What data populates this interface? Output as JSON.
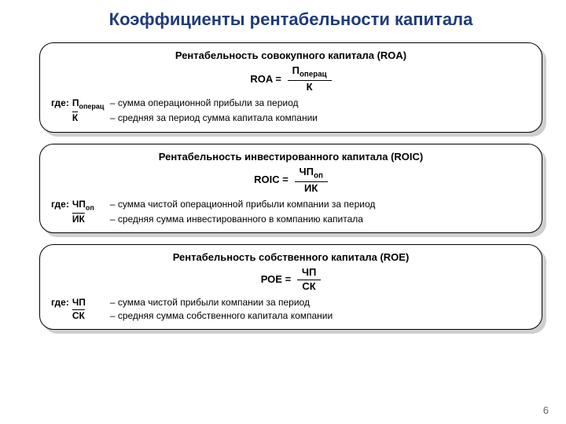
{
  "title": "Коэффициенты рентабельности капитала",
  "page_number": "6",
  "blocks": {
    "roa": {
      "subtitle": "Рентабельность совокупного капитала (ROA)",
      "lhs": "ROA =",
      "num": "Поперац",
      "den": "К",
      "where_label": "где:",
      "r1_sym": "Поперац",
      "r1_txt": "– сумма операционной прибыли за период",
      "r2_sym": "К",
      "r2_txt": "– средняя за период сумма капитала компании"
    },
    "roic": {
      "subtitle": "Рентабельность инвестированного капитала (ROIC)",
      "lhs": "ROIC =",
      "num": "ЧПоп",
      "den": "ИК",
      "where_label": "где:",
      "r1_sym": "ЧПоп",
      "r1_txt": "– сумма чистой операционной прибыли компании за период",
      "r2_sym": "ИК",
      "r2_txt": "– средняя сумма инвестированного в компанию капитала"
    },
    "roe": {
      "subtitle": "Рентабельность собственного капитала (ROE)",
      "lhs": "РОЕ =",
      "num": "ЧП",
      "den": "СК",
      "where_label": "где:",
      "r1_sym": "ЧП",
      "r1_txt": "– сумма чистой прибыли компании за период",
      "r2_sym": "СК",
      "r2_txt": "– средняя сумма собственного капитала компании"
    }
  }
}
